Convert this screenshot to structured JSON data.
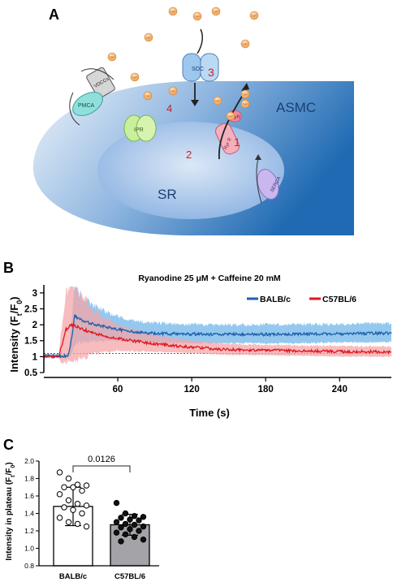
{
  "panel_a": {
    "label": "A",
    "cell_label": "ASMC",
    "sr_label": "SR",
    "channel_soc": "SOC",
    "channel_vdccs": "VDCCs",
    "channel_pmca": "PMCA",
    "channel_ipr": "IPR",
    "channel_ryr": "RyR",
    "channel_ryr_r": "Ryr R",
    "channel_serca": "SERCA",
    "ion": "Ca²⁺",
    "step_1": "1",
    "step_2": "2",
    "step_3": "3",
    "step_4": "4",
    "colors": {
      "cell_dark": "#1f6ab3",
      "cell_light": "#e4eef8",
      "sr": "#9fbfe6",
      "step_numbers": "#cc2222",
      "ion": "#f2a65a"
    }
  },
  "panel_b": {
    "label": "B",
    "chart_data": {
      "type": "line",
      "title": "Ryanodine 25 μM + Caffeine 20 mM",
      "xlabel": "Time (s)",
      "ylabel_main": "Intensity (F",
      "ylabel_sub1": "t",
      "ylabel_mid": "/F",
      "ylabel_sub2": "0",
      "ylabel_end": ")",
      "xlim": [
        0,
        282
      ],
      "ylim": [
        0.5,
        3.2
      ],
      "x_ticks": [
        60,
        120,
        180,
        240
      ],
      "y_ticks": [
        0.5,
        1,
        1.5,
        2,
        2.5,
        3
      ],
      "baseline_y": 1.1,
      "legend_position": "top-right",
      "series": [
        {
          "name": "BALB/c",
          "color": "#1f5fa8",
          "band_color": "#8ec5ee",
          "x": [
            0,
            20,
            23,
            25,
            28,
            32,
            38,
            45,
            55,
            65,
            80,
            100,
            130,
            160,
            200,
            240,
            282
          ],
          "y": [
            1.02,
            1.02,
            1.7,
            2.3,
            2.2,
            2.1,
            2.05,
            1.98,
            1.9,
            1.82,
            1.75,
            1.72,
            1.7,
            1.7,
            1.7,
            1.72,
            1.74
          ],
          "sd": [
            0.05,
            0.05,
            0.5,
            0.8,
            0.7,
            0.6,
            0.5,
            0.45,
            0.35,
            0.3,
            0.28,
            0.26,
            0.25,
            0.25,
            0.25,
            0.25,
            0.25
          ]
        },
        {
          "name": "C57BL/6",
          "color": "#e0161e",
          "band_color": "#f4a6a8",
          "x": [
            0,
            12,
            15,
            18,
            22,
            26,
            32,
            40,
            50,
            60,
            75,
            90,
            110,
            130,
            150,
            180,
            210,
            240,
            282
          ],
          "y": [
            1.0,
            1.0,
            1.4,
            1.85,
            2.0,
            1.95,
            1.85,
            1.75,
            1.65,
            1.57,
            1.48,
            1.4,
            1.33,
            1.27,
            1.22,
            1.2,
            1.18,
            1.16,
            1.15
          ],
          "sd": [
            0.03,
            0.03,
            0.6,
            0.9,
            1.0,
            0.95,
            0.8,
            0.6,
            0.45,
            0.35,
            0.28,
            0.22,
            0.18,
            0.16,
            0.15,
            0.14,
            0.14,
            0.14,
            0.14
          ]
        }
      ]
    }
  },
  "panel_c": {
    "label": "C",
    "chart_data": {
      "type": "bar",
      "ylabel_main": "Intensity in plateau (F",
      "ylabel_sub1": "t",
      "ylabel_mid": "/F",
      "ylabel_sub2": "0",
      "ylabel_end": ")",
      "categories": [
        "BALB/c",
        "C57BL/6"
      ],
      "values": [
        1.48,
        1.27
      ],
      "sd": [
        0.22,
        0.12
      ],
      "ylim": [
        0.8,
        2.0
      ],
      "y_ticks": [
        0.8,
        1.0,
        1.2,
        1.4,
        1.6,
        1.8,
        2.0
      ],
      "p_value": "0.0126",
      "bar_colors": [
        "#ffffff",
        "#a3a3a8"
      ],
      "points": [
        [
          1.87,
          1.8,
          1.73,
          1.72,
          1.7,
          1.7,
          1.66,
          1.62,
          1.55,
          1.51,
          1.49,
          1.47,
          1.44,
          1.4,
          1.35,
          1.3,
          1.28,
          1.25
        ],
        [
          1.52,
          1.4,
          1.37,
          1.36,
          1.35,
          1.33,
          1.32,
          1.3,
          1.28,
          1.27,
          1.25,
          1.24,
          1.22,
          1.2,
          1.18,
          1.16,
          1.13,
          1.1,
          1.08
        ]
      ]
    }
  }
}
